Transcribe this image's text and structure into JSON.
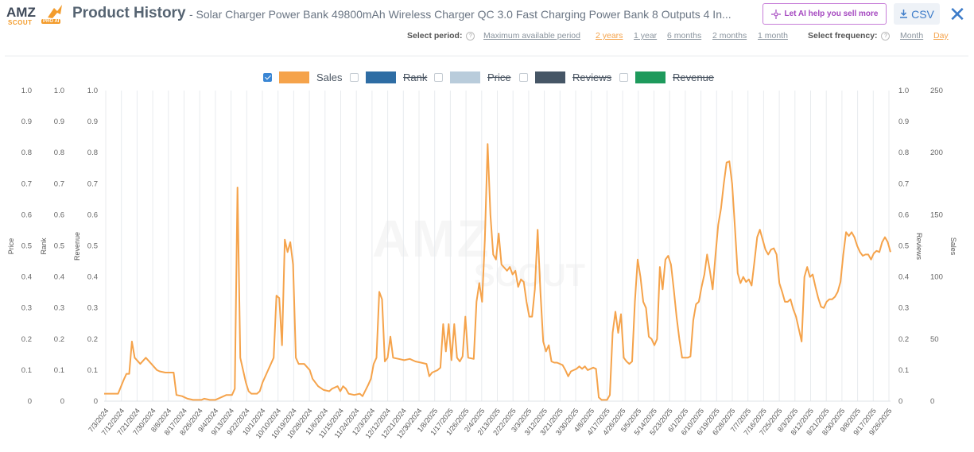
{
  "header": {
    "logo_text": "AMZ",
    "logo_sub": "SCOUT",
    "logo_badge": "PRO AI",
    "title": "Product History",
    "subtitle": "- Solar Charger Power Bank 49800mAh Wireless Charger QC 3.0 Fast Charging Power Bank 8 Outputs 4 In...",
    "ai_button": "Let AI help you sell more",
    "csv_button": "CSV",
    "close_glyph": "✕"
  },
  "period": {
    "label": "Select period:",
    "options": [
      "Maximum available period",
      "2 years",
      "1 year",
      "6 months",
      "2 months",
      "1 month"
    ],
    "active": "2 years"
  },
  "frequency": {
    "label": "Select frequency:",
    "options": [
      "Month",
      "Day"
    ],
    "active": "Day"
  },
  "legend": [
    {
      "label": "Sales",
      "color": "#f5a34b",
      "checked": true
    },
    {
      "label": "Rank",
      "color": "#2e6da4",
      "checked": false
    },
    {
      "label": "Price",
      "color": "#b9ccdb",
      "checked": false
    },
    {
      "label": "Reviews",
      "color": "#465666",
      "checked": false
    },
    {
      "label": "Revenue",
      "color": "#1e9a5c",
      "checked": false
    }
  ],
  "watermark": {
    "line1": "AMZ",
    "line2": "SCOUT"
  },
  "chart_data": {
    "type": "line",
    "left_axes": [
      {
        "title": "Price",
        "ticks": [
          "0",
          "0.1",
          "0.2",
          "0.3",
          "0.4",
          "0.5",
          "0.6",
          "0.7",
          "0.8",
          "0.9",
          "1.0"
        ]
      },
      {
        "title": "Rank",
        "ticks": [
          "0",
          "0.1",
          "0.2",
          "0.3",
          "0.4",
          "0.5",
          "0.6",
          "0.7",
          "0.8",
          "0.9",
          "1.0"
        ]
      },
      {
        "title": "Revenue",
        "ticks": [
          "0",
          "0.1",
          "0.2",
          "0.3",
          "0.4",
          "0.5",
          "0.6",
          "0.7",
          "0.8",
          "0.9",
          "1.0"
        ]
      }
    ],
    "right_axes": [
      {
        "title": "Reviews",
        "ticks": [
          "0",
          "0.1",
          "0.2",
          "0.3",
          "0.4",
          "0.5",
          "0.6",
          "0.7",
          "0.8",
          "0.9",
          "1.0"
        ]
      },
      {
        "title": "Sales",
        "ticks": [
          "0",
          "50",
          "100",
          "150",
          "200",
          "250"
        ]
      }
    ],
    "y_sales_range": [
      0,
      250
    ],
    "x_tick_labels": [
      "7/3/2024",
      "7/12/2024",
      "7/21/2024",
      "7/30/2024",
      "8/8/2024",
      "8/17/2024",
      "8/26/2024",
      "9/4/2024",
      "9/13/2024",
      "9/22/2024",
      "10/1/2024",
      "10/10/2024",
      "10/19/2024",
      "10/28/2024",
      "11/6/2024",
      "11/15/2024",
      "11/24/2024",
      "12/3/2024",
      "12/12/2024",
      "12/21/2024",
      "12/30/2024",
      "1/8/2025",
      "1/17/2025",
      "1/26/2025",
      "2/4/2025",
      "2/13/2025",
      "2/22/2025",
      "3/3/2025",
      "3/12/2025",
      "3/21/2025",
      "3/30/2025",
      "4/8/2025",
      "4/17/2025",
      "4/26/2025",
      "5/5/2025",
      "5/14/2025",
      "5/23/2025",
      "6/1/2025",
      "6/10/2025",
      "6/19/2025",
      "6/28/2025",
      "7/7/2025",
      "7/16/2025",
      "7/25/2025",
      "8/3/2025",
      "8/12/2025",
      "8/21/2025",
      "8/30/2025",
      "9/8/2025",
      "9/17/2025",
      "9/26/2025"
    ],
    "series": [
      {
        "name": "Sales",
        "points": [
          [
            0,
            6
          ],
          [
            5,
            6
          ],
          [
            7,
            17
          ],
          [
            8,
            22
          ],
          [
            9,
            22
          ],
          [
            10,
            48
          ],
          [
            11,
            35
          ],
          [
            13,
            30
          ],
          [
            15,
            35
          ],
          [
            17,
            30
          ],
          [
            19,
            25
          ],
          [
            20,
            24
          ],
          [
            22,
            23
          ],
          [
            25,
            23
          ],
          [
            26,
            5
          ],
          [
            28,
            4
          ],
          [
            30,
            2
          ],
          [
            32,
            1
          ],
          [
            35,
            1
          ],
          [
            36,
            2
          ],
          [
            38,
            1
          ],
          [
            40,
            1
          ],
          [
            42,
            3
          ],
          [
            44,
            5
          ],
          [
            46,
            5
          ],
          [
            47,
            10
          ],
          [
            48,
            172
          ],
          [
            49,
            35
          ],
          [
            50,
            25
          ],
          [
            51,
            15
          ],
          [
            52,
            8
          ],
          [
            53,
            6
          ],
          [
            55,
            6
          ],
          [
            56,
            8
          ],
          [
            57,
            15
          ],
          [
            59,
            25
          ],
          [
            61,
            35
          ],
          [
            62,
            85
          ],
          [
            63,
            83
          ],
          [
            64,
            45
          ],
          [
            65,
            130
          ],
          [
            66,
            120
          ],
          [
            67,
            128
          ],
          [
            68,
            110
          ],
          [
            69,
            35
          ],
          [
            70,
            30
          ],
          [
            72,
            30
          ],
          [
            74,
            25
          ],
          [
            75,
            18
          ],
          [
            77,
            12
          ],
          [
            79,
            9
          ],
          [
            81,
            8
          ],
          [
            82,
            10
          ],
          [
            84,
            12
          ],
          [
            85,
            8
          ],
          [
            86,
            12
          ],
          [
            87,
            10
          ],
          [
            88,
            6
          ],
          [
            90,
            5
          ],
          [
            92,
            6
          ],
          [
            93,
            4
          ],
          [
            95,
            13
          ],
          [
            96,
            18
          ],
          [
            97,
            30
          ],
          [
            98,
            35
          ],
          [
            99,
            88
          ],
          [
            100,
            82
          ],
          [
            101,
            32
          ],
          [
            102,
            35
          ],
          [
            103,
            52
          ],
          [
            104,
            35
          ],
          [
            106,
            34
          ],
          [
            108,
            33
          ],
          [
            110,
            34
          ],
          [
            112,
            32
          ],
          [
            114,
            31
          ],
          [
            116,
            30
          ],
          [
            117,
            20
          ],
          [
            118,
            23
          ],
          [
            120,
            25
          ],
          [
            121,
            27
          ],
          [
            122,
            62
          ],
          [
            123,
            40
          ],
          [
            124,
            62
          ],
          [
            125,
            33
          ],
          [
            126,
            62
          ],
          [
            127,
            35
          ],
          [
            128,
            32
          ],
          [
            129,
            36
          ],
          [
            130,
            68
          ],
          [
            131,
            35
          ],
          [
            133,
            34
          ],
          [
            134,
            80
          ],
          [
            135,
            95
          ],
          [
            136,
            80
          ],
          [
            137,
            130
          ],
          [
            138,
            207
          ],
          [
            139,
            150
          ],
          [
            140,
            118
          ],
          [
            141,
            114
          ],
          [
            142,
            135
          ],
          [
            143,
            110
          ],
          [
            145,
            105
          ],
          [
            146,
            108
          ],
          [
            147,
            102
          ],
          [
            148,
            105
          ],
          [
            149,
            92
          ],
          [
            150,
            98
          ],
          [
            151,
            96
          ],
          [
            152,
            80
          ],
          [
            153,
            68
          ],
          [
            154,
            68
          ],
          [
            155,
            90
          ],
          [
            156,
            138
          ],
          [
            157,
            88
          ],
          [
            158,
            48
          ],
          [
            159,
            40
          ],
          [
            160,
            45
          ],
          [
            161,
            32
          ],
          [
            162,
            31
          ],
          [
            163,
            31
          ],
          [
            165,
            29
          ],
          [
            166,
            25
          ],
          [
            167,
            20
          ],
          [
            168,
            24
          ],
          [
            169,
            25
          ],
          [
            170,
            26
          ],
          [
            171,
            28
          ],
          [
            172,
            26
          ],
          [
            173,
            28
          ],
          [
            174,
            25
          ],
          [
            176,
            27
          ],
          [
            177,
            26
          ],
          [
            178,
            3
          ],
          [
            179,
            1
          ],
          [
            181,
            1
          ],
          [
            182,
            5
          ],
          [
            183,
            55
          ],
          [
            184,
            72
          ],
          [
            185,
            55
          ],
          [
            186,
            70
          ],
          [
            187,
            35
          ],
          [
            188,
            32
          ],
          [
            189,
            30
          ],
          [
            190,
            32
          ],
          [
            191,
            80
          ],
          [
            192,
            114
          ],
          [
            193,
            100
          ],
          [
            194,
            80
          ],
          [
            195,
            75
          ],
          [
            196,
            52
          ],
          [
            197,
            50
          ],
          [
            198,
            45
          ],
          [
            199,
            50
          ],
          [
            200,
            108
          ],
          [
            201,
            90
          ],
          [
            202,
            114
          ],
          [
            203,
            117
          ],
          [
            204,
            110
          ],
          [
            205,
            90
          ],
          [
            206,
            68
          ],
          [
            207,
            50
          ],
          [
            208,
            35
          ],
          [
            209,
            35
          ],
          [
            210,
            35
          ],
          [
            211,
            36
          ],
          [
            212,
            65
          ],
          [
            213,
            78
          ],
          [
            214,
            80
          ],
          [
            215,
            92
          ],
          [
            216,
            102
          ],
          [
            217,
            118
          ],
          [
            218,
            105
          ],
          [
            219,
            90
          ],
          [
            220,
            117
          ],
          [
            221,
            142
          ],
          [
            222,
            155
          ],
          [
            223,
            175
          ],
          [
            224,
            192
          ],
          [
            225,
            193
          ],
          [
            226,
            175
          ],
          [
            227,
            140
          ],
          [
            228,
            103
          ],
          [
            229,
            95
          ],
          [
            230,
            100
          ],
          [
            231,
            96
          ],
          [
            232,
            98
          ],
          [
            233,
            93
          ],
          [
            234,
            112
          ],
          [
            235,
            132
          ],
          [
            236,
            138
          ],
          [
            237,
            130
          ],
          [
            238,
            122
          ],
          [
            239,
            118
          ],
          [
            240,
            122
          ],
          [
            241,
            123
          ],
          [
            242,
            118
          ],
          [
            243,
            95
          ],
          [
            244,
            88
          ],
          [
            245,
            80
          ],
          [
            246,
            80
          ],
          [
            247,
            82
          ],
          [
            248,
            74
          ],
          [
            249,
            68
          ],
          [
            250,
            58
          ],
          [
            251,
            48
          ],
          [
            252,
            100
          ],
          [
            253,
            108
          ],
          [
            254,
            100
          ],
          [
            255,
            102
          ],
          [
            256,
            92
          ],
          [
            257,
            83
          ],
          [
            258,
            76
          ],
          [
            259,
            75
          ],
          [
            260,
            80
          ],
          [
            261,
            82
          ],
          [
            262,
            82
          ],
          [
            263,
            84
          ],
          [
            264,
            88
          ],
          [
            265,
            96
          ],
          [
            266,
            118
          ],
          [
            267,
            136
          ],
          [
            268,
            133
          ],
          [
            269,
            136
          ],
          [
            270,
            132
          ],
          [
            271,
            125
          ],
          [
            272,
            120
          ],
          [
            273,
            117
          ],
          [
            274,
            118
          ],
          [
            275,
            118
          ],
          [
            276,
            114
          ],
          [
            277,
            119
          ],
          [
            278,
            121
          ],
          [
            279,
            120
          ],
          [
            280,
            128
          ],
          [
            281,
            132
          ],
          [
            282,
            128
          ],
          [
            283,
            120
          ]
        ]
      }
    ],
    "grid": true
  }
}
